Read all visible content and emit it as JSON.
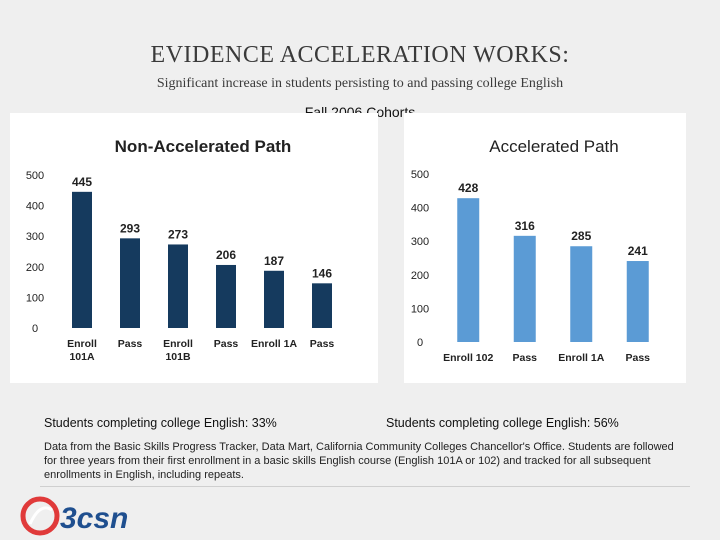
{
  "slide": {
    "title": "EVIDENCE ACCELERATION WORKS:",
    "subtitle": "Significant increase in students persisting to and passing college English",
    "cohort_label": "Fall 2006 Cohorts",
    "summary_left": "Students completing college English: 33%",
    "summary_right": "Students completing college English: 56%",
    "source_note": "Data from the Basic Skills Progress Tracker, Data Mart, California Community Colleges Chancellor's Office. Students are followed for three years from their first enrollment in a basic skills English course (English 101A or 102) and tracked for all subsequent enrollments in English, including repeats.",
    "logo_text": "3csn"
  },
  "colors": {
    "non_accelerated_bar": "#153a5e",
    "accelerated_bar": "#5b9bd5",
    "logo_red": "#e03a3a",
    "logo_blue": "#1f4f8f"
  },
  "chart_data": [
    {
      "type": "bar",
      "title": "Non-Accelerated Path",
      "categories": [
        "Enroll 101A",
        "Pass",
        "Enroll 101B",
        "Pass",
        "Enroll 1A",
        "Pass"
      ],
      "category_lines": [
        [
          "Enroll",
          "101A"
        ],
        [
          "Pass"
        ],
        [
          "Enroll",
          "101B"
        ],
        [
          "Pass"
        ],
        [
          "Enroll 1A"
        ],
        [
          "Pass"
        ]
      ],
      "values": [
        445,
        293,
        273,
        206,
        187,
        146
      ],
      "yticks": [
        0,
        100,
        200,
        300,
        400,
        500
      ],
      "ylim": [
        0,
        500
      ],
      "grid": false
    },
    {
      "type": "bar",
      "title": "Accelerated Path",
      "categories": [
        "Enroll 102",
        "Pass",
        "Enroll 1A",
        "Pass"
      ],
      "category_lines": [
        [
          "Enroll 102"
        ],
        [
          "Pass"
        ],
        [
          "Enroll 1A"
        ],
        [
          "Pass"
        ]
      ],
      "values": [
        428,
        316,
        285,
        241
      ],
      "yticks": [
        0,
        100,
        200,
        300,
        400,
        500
      ],
      "ylim": [
        0,
        500
      ],
      "grid": false
    }
  ]
}
